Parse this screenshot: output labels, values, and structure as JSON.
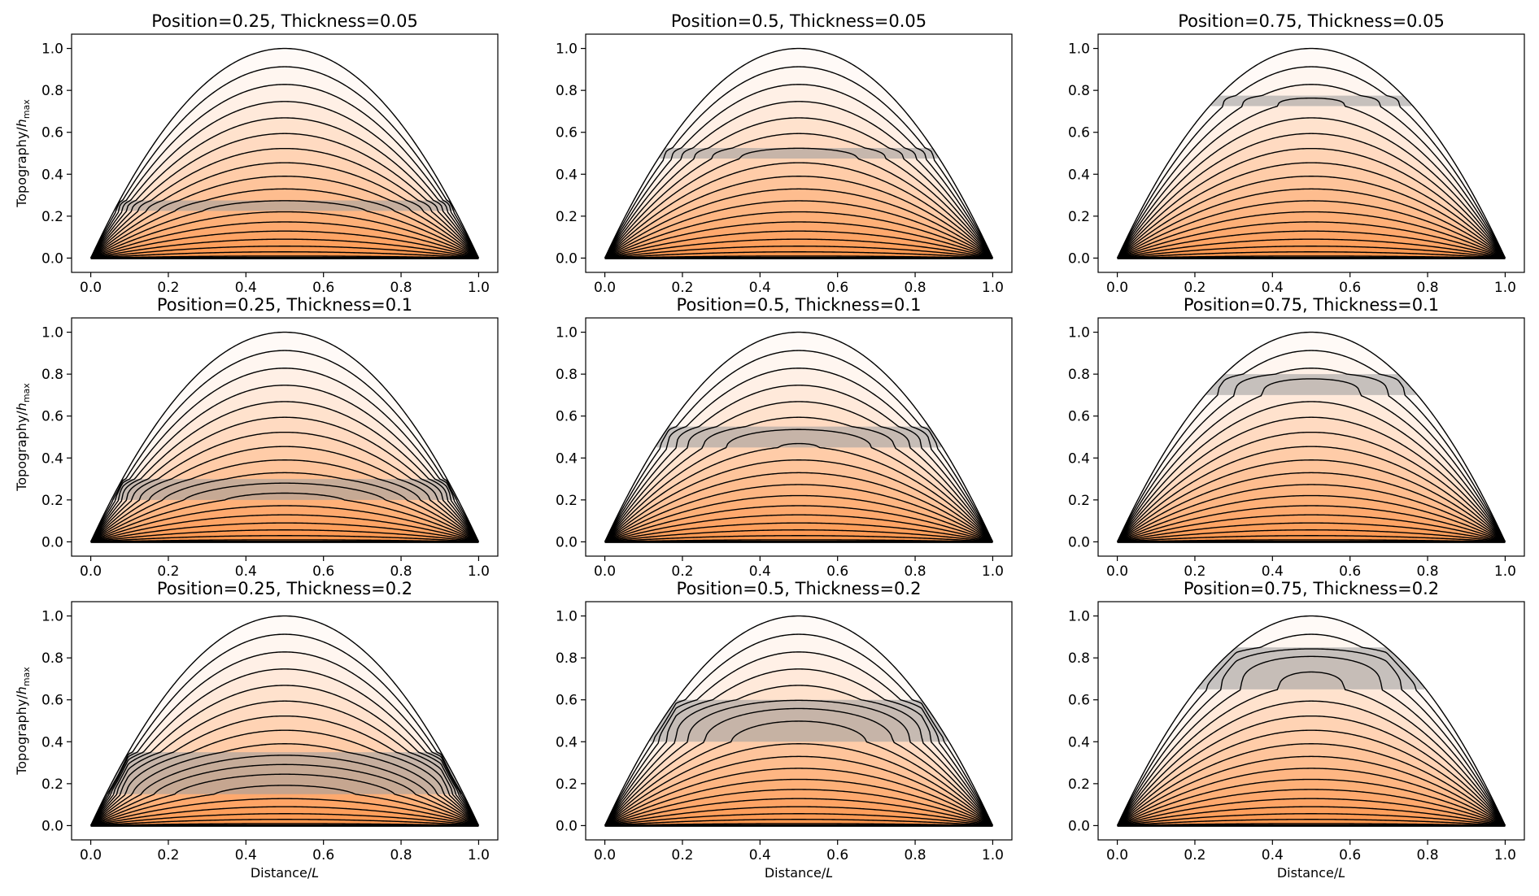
{
  "figure": {
    "xlabel_text": "Distance/",
    "xlabel_var": "L",
    "ylabel_text": "Topography/",
    "ylabel_var": "h",
    "ylabel_sub": "max"
  },
  "chart_data": [
    {
      "type": "line",
      "title": "Position=0.25, Thickness=0.05",
      "position": 0.25,
      "thickness": 0.05,
      "contour_count": 18,
      "xlim": [
        0,
        1
      ],
      "ylim": [
        0,
        1
      ],
      "xticks": [
        "0.0",
        "0.2",
        "0.4",
        "0.6",
        "0.8",
        "1.0"
      ],
      "yticks": [
        "0.0",
        "0.2",
        "0.4",
        "0.6",
        "0.8",
        "1.0"
      ],
      "grid": false,
      "colors": {
        "fill": "#fe8c3c",
        "band": "#a0a0a0",
        "line": "#000000"
      }
    },
    {
      "type": "line",
      "title": "Position=0.5, Thickness=0.05",
      "position": 0.5,
      "thickness": 0.05,
      "contour_count": 18,
      "xlim": [
        0,
        1
      ],
      "ylim": [
        0,
        1
      ],
      "xticks": [
        "0.0",
        "0.2",
        "0.4",
        "0.6",
        "0.8",
        "1.0"
      ],
      "yticks": [
        "0.0",
        "0.2",
        "0.4",
        "0.6",
        "0.8",
        "1.0"
      ],
      "grid": false,
      "colors": {
        "fill": "#fe8c3c",
        "band": "#a0a0a0",
        "line": "#000000"
      }
    },
    {
      "type": "line",
      "title": "Position=0.75, Thickness=0.05",
      "position": 0.75,
      "thickness": 0.05,
      "contour_count": 18,
      "xlim": [
        0,
        1
      ],
      "ylim": [
        0,
        1
      ],
      "xticks": [
        "0.0",
        "0.2",
        "0.4",
        "0.6",
        "0.8",
        "1.0"
      ],
      "yticks": [
        "0.0",
        "0.2",
        "0.4",
        "0.6",
        "0.8",
        "1.0"
      ],
      "grid": false,
      "colors": {
        "fill": "#fe8c3c",
        "band": "#a0a0a0",
        "line": "#000000"
      }
    },
    {
      "type": "line",
      "title": "Position=0.25, Thickness=0.1",
      "position": 0.25,
      "thickness": 0.1,
      "contour_count": 18,
      "xlim": [
        0,
        1
      ],
      "ylim": [
        0,
        1
      ],
      "xticks": [
        "0.0",
        "0.2",
        "0.4",
        "0.6",
        "0.8",
        "1.0"
      ],
      "yticks": [
        "0.0",
        "0.2",
        "0.4",
        "0.6",
        "0.8",
        "1.0"
      ],
      "grid": false,
      "colors": {
        "fill": "#fe8c3c",
        "band": "#a0a0a0",
        "line": "#000000"
      }
    },
    {
      "type": "line",
      "title": "Position=0.5, Thickness=0.1",
      "position": 0.5,
      "thickness": 0.1,
      "contour_count": 18,
      "xlim": [
        0,
        1
      ],
      "ylim": [
        0,
        1
      ],
      "xticks": [
        "0.0",
        "0.2",
        "0.4",
        "0.6",
        "0.8",
        "1.0"
      ],
      "yticks": [
        "0.0",
        "0.2",
        "0.4",
        "0.6",
        "0.8",
        "1.0"
      ],
      "grid": false,
      "colors": {
        "fill": "#fe8c3c",
        "band": "#a0a0a0",
        "line": "#000000"
      }
    },
    {
      "type": "line",
      "title": "Position=0.75, Thickness=0.1",
      "position": 0.75,
      "thickness": 0.1,
      "contour_count": 18,
      "xlim": [
        0,
        1
      ],
      "ylim": [
        0,
        1
      ],
      "xticks": [
        "0.0",
        "0.2",
        "0.4",
        "0.6",
        "0.8",
        "1.0"
      ],
      "yticks": [
        "0.0",
        "0.2",
        "0.4",
        "0.6",
        "0.8",
        "1.0"
      ],
      "grid": false,
      "colors": {
        "fill": "#fe8c3c",
        "band": "#a0a0a0",
        "line": "#000000"
      }
    },
    {
      "type": "line",
      "title": "Position=0.25, Thickness=0.2",
      "position": 0.25,
      "thickness": 0.2,
      "contour_count": 18,
      "xlim": [
        0,
        1
      ],
      "ylim": [
        0,
        1
      ],
      "xticks": [
        "0.0",
        "0.2",
        "0.4",
        "0.6",
        "0.8",
        "1.0"
      ],
      "yticks": [
        "0.0",
        "0.2",
        "0.4",
        "0.6",
        "0.8",
        "1.0"
      ],
      "grid": false,
      "colors": {
        "fill": "#fe8c3c",
        "band": "#a0a0a0",
        "line": "#000000"
      }
    },
    {
      "type": "line",
      "title": "Position=0.5, Thickness=0.2",
      "position": 0.5,
      "thickness": 0.2,
      "contour_count": 18,
      "xlim": [
        0,
        1
      ],
      "ylim": [
        0,
        1
      ],
      "xticks": [
        "0.0",
        "0.2",
        "0.4",
        "0.6",
        "0.8",
        "1.0"
      ],
      "yticks": [
        "0.0",
        "0.2",
        "0.4",
        "0.6",
        "0.8",
        "1.0"
      ],
      "grid": false,
      "colors": {
        "fill": "#fe8c3c",
        "band": "#a0a0a0",
        "line": "#000000"
      }
    },
    {
      "type": "line",
      "title": "Position=0.75, Thickness=0.2",
      "position": 0.75,
      "thickness": 0.2,
      "contour_count": 18,
      "xlim": [
        0,
        1
      ],
      "ylim": [
        0,
        1
      ],
      "xticks": [
        "0.0",
        "0.2",
        "0.4",
        "0.6",
        "0.8",
        "1.0"
      ],
      "yticks": [
        "0.0",
        "0.2",
        "0.4",
        "0.6",
        "0.8",
        "1.0"
      ],
      "grid": false,
      "colors": {
        "fill": "#fe8c3c",
        "band": "#a0a0a0",
        "line": "#000000"
      }
    }
  ]
}
